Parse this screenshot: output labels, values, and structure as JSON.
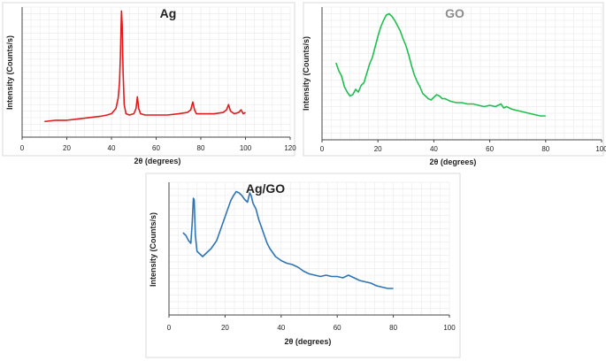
{
  "chart_data": [
    {
      "type": "line",
      "title": "Ag",
      "title_color": "#222222",
      "xlabel": "2θ (degrees)",
      "ylabel": "Intensity (Counts/s)",
      "xlim": [
        0,
        120
      ],
      "xticks": [
        "0",
        "20",
        "40",
        "60",
        "80",
        "100",
        "120"
      ],
      "y_tick_labels_shown": false,
      "grid": true,
      "series": [
        {
          "color": "#e31a1c",
          "points": [
            [
              10,
              0.12
            ],
            [
              15,
              0.13
            ],
            [
              20,
              0.13
            ],
            [
              25,
              0.14
            ],
            [
              30,
              0.15
            ],
            [
              35,
              0.16
            ],
            [
              38,
              0.17
            ],
            [
              40,
              0.18
            ],
            [
              42,
              0.22
            ],
            [
              43,
              0.3
            ],
            [
              43.6,
              0.42
            ],
            [
              44.0,
              0.62
            ],
            [
              44.3,
              0.85
            ],
            [
              44.5,
              0.97
            ],
            [
              44.8,
              0.86
            ],
            [
              45.2,
              0.5
            ],
            [
              45.7,
              0.25
            ],
            [
              46.5,
              0.18
            ],
            [
              48,
              0.17
            ],
            [
              50,
              0.18
            ],
            [
              51,
              0.22
            ],
            [
              51.6,
              0.31
            ],
            [
              52.2,
              0.22
            ],
            [
              53,
              0.18
            ],
            [
              55,
              0.17
            ],
            [
              60,
              0.17
            ],
            [
              65,
              0.17
            ],
            [
              70,
              0.18
            ],
            [
              74,
              0.19
            ],
            [
              75.5,
              0.21
            ],
            [
              76.4,
              0.27
            ],
            [
              77.2,
              0.21
            ],
            [
              78,
              0.18
            ],
            [
              82,
              0.18
            ],
            [
              86,
              0.18
            ],
            [
              90,
              0.19
            ],
            [
              91.5,
              0.21
            ],
            [
              92.4,
              0.25
            ],
            [
              93.3,
              0.2
            ],
            [
              95,
              0.18
            ],
            [
              97,
              0.19
            ],
            [
              98,
              0.21
            ],
            [
              99,
              0.18
            ],
            [
              100,
              0.19
            ]
          ]
        }
      ]
    },
    {
      "type": "line",
      "title": "GO",
      "title_color": "#8c8c8c",
      "xlabel": "2θ (degrees)",
      "ylabel": "Intensity (Counts/s)",
      "xlim": [
        0,
        100
      ],
      "xticks": [
        "0",
        "20",
        "40",
        "60",
        "80",
        "100"
      ],
      "y_tick_labels_shown": false,
      "grid": true,
      "series": [
        {
          "color": "#1fbf4f",
          "points": [
            [
              5,
              0.58
            ],
            [
              6,
              0.52
            ],
            [
              7,
              0.48
            ],
            [
              8,
              0.4
            ],
            [
              9,
              0.36
            ],
            [
              10,
              0.33
            ],
            [
              11,
              0.34
            ],
            [
              12,
              0.38
            ],
            [
              13,
              0.36
            ],
            [
              14,
              0.41
            ],
            [
              15,
              0.43
            ],
            [
              16,
              0.5
            ],
            [
              17,
              0.57
            ],
            [
              18,
              0.62
            ],
            [
              19,
              0.7
            ],
            [
              20,
              0.78
            ],
            [
              21,
              0.85
            ],
            [
              22,
              0.9
            ],
            [
              23,
              0.94
            ],
            [
              24,
              0.95
            ],
            [
              25,
              0.93
            ],
            [
              26,
              0.9
            ],
            [
              27,
              0.86
            ],
            [
              28,
              0.82
            ],
            [
              29,
              0.76
            ],
            [
              30,
              0.71
            ],
            [
              31,
              0.64
            ],
            [
              32,
              0.56
            ],
            [
              33,
              0.49
            ],
            [
              34,
              0.44
            ],
            [
              35,
              0.4
            ],
            [
              36,
              0.35
            ],
            [
              37,
              0.33
            ],
            [
              38,
              0.31
            ],
            [
              39,
              0.3
            ],
            [
              40,
              0.32
            ],
            [
              41,
              0.34
            ],
            [
              42,
              0.33
            ],
            [
              43,
              0.31
            ],
            [
              44,
              0.31
            ],
            [
              46,
              0.29
            ],
            [
              48,
              0.28
            ],
            [
              50,
              0.28
            ],
            [
              52,
              0.27
            ],
            [
              54,
              0.27
            ],
            [
              56,
              0.26
            ],
            [
              58,
              0.25
            ],
            [
              60,
              0.26
            ],
            [
              62,
              0.25
            ],
            [
              64,
              0.27
            ],
            [
              65,
              0.24
            ],
            [
              66,
              0.25
            ],
            [
              68,
              0.23
            ],
            [
              70,
              0.22
            ],
            [
              72,
              0.21
            ],
            [
              74,
              0.2
            ],
            [
              76,
              0.19
            ],
            [
              78,
              0.18
            ],
            [
              80,
              0.18
            ]
          ]
        }
      ]
    },
    {
      "type": "line",
      "title": "Ag/GO",
      "title_color": "#222222",
      "xlabel": "2θ (degrees)",
      "ylabel": "Intensity (Counts/s)",
      "xlim": [
        0,
        100
      ],
      "xticks": [
        "0",
        "20",
        "40",
        "60",
        "80",
        "100"
      ],
      "y_tick_labels_shown": false,
      "grid": true,
      "series": [
        {
          "color": "#2f75b5",
          "points": [
            [
              5,
              0.62
            ],
            [
              6,
              0.6
            ],
            [
              7,
              0.56
            ],
            [
              7.8,
              0.54
            ],
            [
              8.3,
              0.7
            ],
            [
              8.7,
              0.88
            ],
            [
              9.0,
              0.87
            ],
            [
              9.4,
              0.6
            ],
            [
              10,
              0.48
            ],
            [
              11,
              0.46
            ],
            [
              12,
              0.44
            ],
            [
              13,
              0.46
            ],
            [
              14,
              0.48
            ],
            [
              15,
              0.5
            ],
            [
              16,
              0.53
            ],
            [
              17,
              0.56
            ],
            [
              18,
              0.62
            ],
            [
              19,
              0.68
            ],
            [
              20,
              0.74
            ],
            [
              21,
              0.8
            ],
            [
              22,
              0.86
            ],
            [
              23,
              0.9
            ],
            [
              24,
              0.93
            ],
            [
              25,
              0.92
            ],
            [
              26,
              0.9
            ],
            [
              27,
              0.87
            ],
            [
              28,
              0.85
            ],
            [
              28.8,
              0.92
            ],
            [
              29.3,
              0.9
            ],
            [
              30,
              0.84
            ],
            [
              31,
              0.8
            ],
            [
              32,
              0.72
            ],
            [
              33,
              0.66
            ],
            [
              34,
              0.6
            ],
            [
              35,
              0.54
            ],
            [
              36,
              0.5
            ],
            [
              37,
              0.47
            ],
            [
              38,
              0.44
            ],
            [
              40,
              0.41
            ],
            [
              42,
              0.39
            ],
            [
              44,
              0.38
            ],
            [
              46,
              0.36
            ],
            [
              48,
              0.33
            ],
            [
              50,
              0.31
            ],
            [
              52,
              0.3
            ],
            [
              54,
              0.29
            ],
            [
              56,
              0.3
            ],
            [
              58,
              0.29
            ],
            [
              60,
              0.29
            ],
            [
              62,
              0.28
            ],
            [
              64,
              0.3
            ],
            [
              66,
              0.28
            ],
            [
              68,
              0.26
            ],
            [
              70,
              0.25
            ],
            [
              72,
              0.24
            ],
            [
              74,
              0.22
            ],
            [
              76,
              0.21
            ],
            [
              78,
              0.2
            ],
            [
              80,
              0.2
            ]
          ]
        }
      ]
    }
  ]
}
